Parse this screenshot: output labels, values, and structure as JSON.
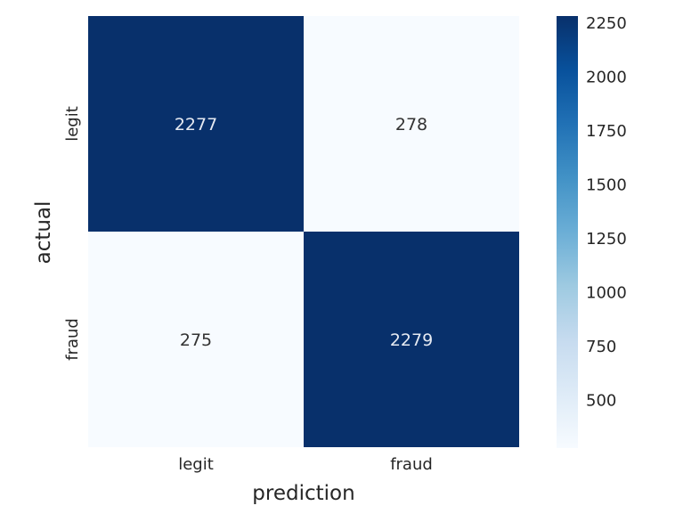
{
  "chart_data": {
    "type": "heatmap",
    "title": "",
    "xlabel": "prediction",
    "ylabel": "actual",
    "x_categories": [
      "legit",
      "fraud"
    ],
    "y_categories": [
      "legit",
      "fraud"
    ],
    "matrix": [
      [
        2277,
        278
      ],
      [
        275,
        2279
      ]
    ],
    "colormap": "Blues",
    "colorbar": {
      "min": 275,
      "max": 2279,
      "ticks": [
        {
          "value": 2250,
          "label": "2250"
        },
        {
          "value": 2000,
          "label": "2000"
        },
        {
          "value": 1750,
          "label": "1750"
        },
        {
          "value": 1500,
          "label": "1500"
        },
        {
          "value": 1250,
          "label": "1250"
        },
        {
          "value": 1000,
          "label": "1000"
        },
        {
          "value": 750,
          "label": "750"
        },
        {
          "value": 500,
          "label": "500"
        }
      ]
    },
    "annotation_colors": {
      "dark_cell": "#e6eaf2",
      "light_cell": "#333333"
    },
    "grid": false
  }
}
